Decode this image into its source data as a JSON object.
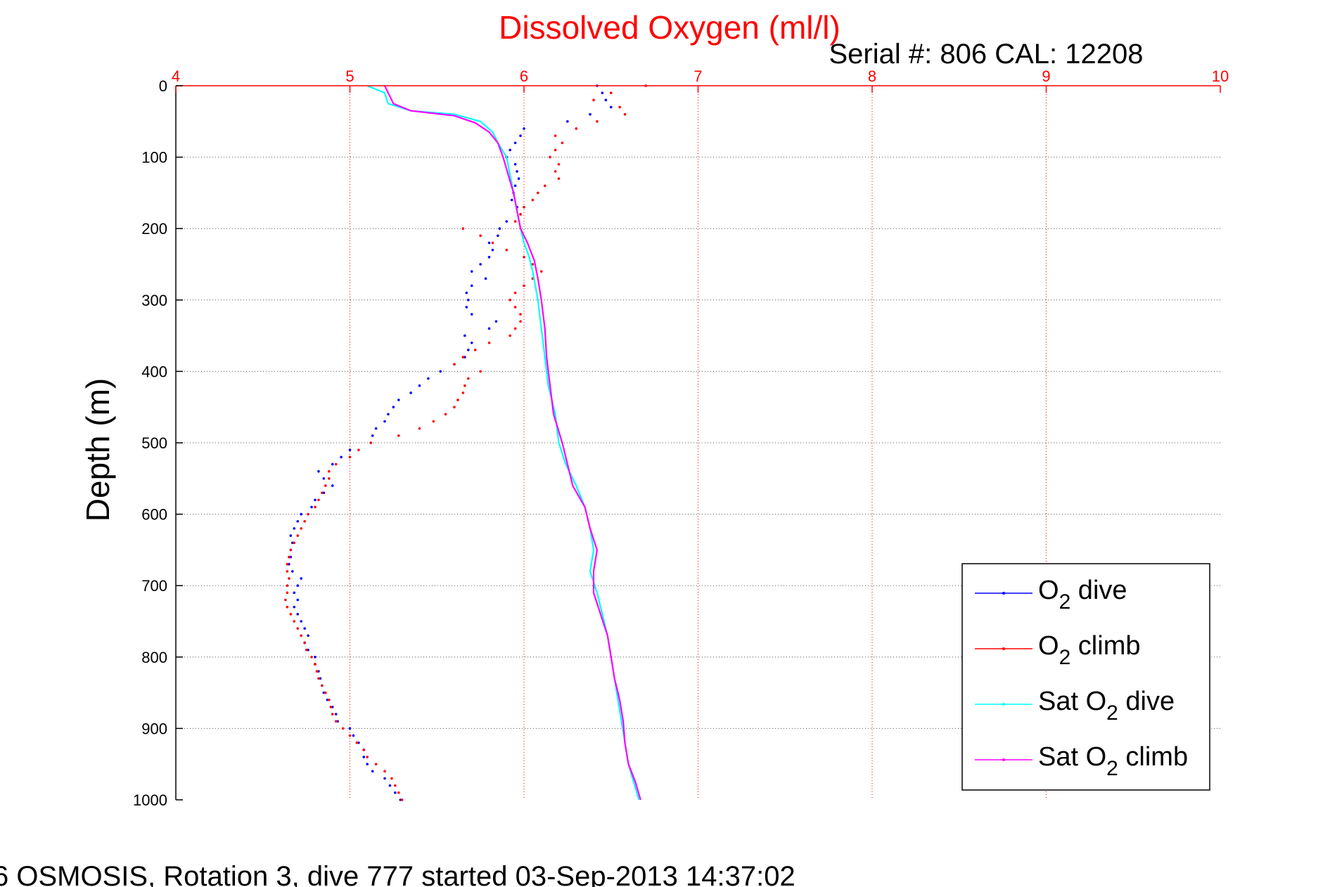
{
  "chart_data": {
    "type": "scatter",
    "title": "Dissolved Oxygen (ml/l)",
    "subtitle": "Serial #: 806  CAL: 12208",
    "xlabel": "",
    "ylabel": "Depth (m)",
    "footer": "6 OSMOSIS, Rotation 3, dive 777 started 03-Sep-2013 14:37:02",
    "xlim": [
      4,
      10
    ],
    "ylim": [
      0,
      1000
    ],
    "y_reversed": true,
    "x_ticks": [
      "4",
      "5",
      "6",
      "7",
      "8",
      "9",
      "10"
    ],
    "y_ticks": [
      "0",
      "100",
      "200",
      "300",
      "400",
      "500",
      "600",
      "700",
      "800",
      "900",
      "1000"
    ],
    "grid": true,
    "legend_position": "bottom-right",
    "colors": {
      "axis_top": "#ff0000",
      "grid": "#c8c8c8",
      "axis": "#000000",
      "title": "#ff0000"
    },
    "series": [
      {
        "name": "O2 dive",
        "legend_main": "O",
        "legend_sub": "2",
        "legend_rest": " dive",
        "color": "#0000ff",
        "style": "dots",
        "points": [
          [
            6.42,
            0
          ],
          [
            6.45,
            10
          ],
          [
            6.47,
            20
          ],
          [
            6.5,
            30
          ],
          [
            6.38,
            40
          ],
          [
            6.25,
            50
          ],
          [
            6.0,
            60
          ],
          [
            5.98,
            70
          ],
          [
            5.95,
            80
          ],
          [
            5.92,
            90
          ],
          [
            5.9,
            100
          ],
          [
            5.95,
            110
          ],
          [
            5.96,
            120
          ],
          [
            5.97,
            130
          ],
          [
            5.95,
            140
          ],
          [
            5.94,
            150
          ],
          [
            5.93,
            160
          ],
          [
            5.96,
            170
          ],
          [
            5.98,
            180
          ],
          [
            5.9,
            190
          ],
          [
            5.86,
            200
          ],
          [
            5.85,
            210
          ],
          [
            5.8,
            220
          ],
          [
            5.82,
            230
          ],
          [
            5.8,
            240
          ],
          [
            5.75,
            250
          ],
          [
            5.7,
            260
          ],
          [
            5.78,
            270
          ],
          [
            5.7,
            280
          ],
          [
            5.67,
            290
          ],
          [
            5.68,
            300
          ],
          [
            5.67,
            310
          ],
          [
            5.7,
            320
          ],
          [
            5.84,
            330
          ],
          [
            5.8,
            340
          ],
          [
            5.66,
            350
          ],
          [
            5.7,
            360
          ],
          [
            5.68,
            370
          ],
          [
            5.66,
            380
          ],
          [
            5.6,
            390
          ],
          [
            5.52,
            400
          ],
          [
            5.45,
            410
          ],
          [
            5.4,
            420
          ],
          [
            5.35,
            430
          ],
          [
            5.28,
            440
          ],
          [
            5.25,
            450
          ],
          [
            5.22,
            460
          ],
          [
            5.2,
            470
          ],
          [
            5.15,
            480
          ],
          [
            5.13,
            490
          ],
          [
            5.12,
            500
          ],
          [
            5.0,
            510
          ],
          [
            4.95,
            520
          ],
          [
            4.9,
            530
          ],
          [
            4.82,
            540
          ],
          [
            4.85,
            550
          ],
          [
            4.9,
            560
          ],
          [
            4.85,
            570
          ],
          [
            4.8,
            580
          ],
          [
            4.78,
            590
          ],
          [
            4.72,
            600
          ],
          [
            4.7,
            610
          ],
          [
            4.68,
            620
          ],
          [
            4.66,
            630
          ],
          [
            4.67,
            640
          ],
          [
            4.66,
            650
          ],
          [
            4.66,
            660
          ],
          [
            4.65,
            670
          ],
          [
            4.67,
            680
          ],
          [
            4.72,
            690
          ],
          [
            4.7,
            700
          ],
          [
            4.68,
            710
          ],
          [
            4.7,
            720
          ],
          [
            4.68,
            730
          ],
          [
            4.7,
            740
          ],
          [
            4.72,
            750
          ],
          [
            4.74,
            760
          ],
          [
            4.76,
            770
          ],
          [
            4.74,
            780
          ],
          [
            4.76,
            790
          ],
          [
            4.8,
            800
          ],
          [
            4.8,
            810
          ],
          [
            4.82,
            820
          ],
          [
            4.83,
            830
          ],
          [
            4.84,
            840
          ],
          [
            4.85,
            850
          ],
          [
            4.87,
            860
          ],
          [
            4.9,
            870
          ],
          [
            4.92,
            880
          ],
          [
            4.93,
            890
          ],
          [
            5.0,
            900
          ],
          [
            5.02,
            910
          ],
          [
            5.05,
            920
          ],
          [
            5.08,
            930
          ],
          [
            5.08,
            940
          ],
          [
            5.1,
            950
          ],
          [
            5.13,
            960
          ],
          [
            5.2,
            970
          ],
          [
            5.23,
            980
          ],
          [
            5.26,
            990
          ],
          [
            5.29,
            1000
          ]
        ]
      },
      {
        "name": "O2 climb",
        "legend_main": "O",
        "legend_sub": "2",
        "legend_rest": " climb",
        "color": "#ff0000",
        "style": "dots",
        "points": [
          [
            6.7,
            0
          ],
          [
            6.5,
            10
          ],
          [
            6.4,
            20
          ],
          [
            6.55,
            30
          ],
          [
            6.58,
            40
          ],
          [
            6.42,
            50
          ],
          [
            6.3,
            60
          ],
          [
            6.18,
            70
          ],
          [
            6.22,
            80
          ],
          [
            6.18,
            90
          ],
          [
            6.15,
            100
          ],
          [
            6.2,
            110
          ],
          [
            6.18,
            120
          ],
          [
            6.2,
            130
          ],
          [
            6.12,
            140
          ],
          [
            6.08,
            150
          ],
          [
            6.05,
            160
          ],
          [
            6.0,
            170
          ],
          [
            5.98,
            180
          ],
          [
            5.95,
            190
          ],
          [
            5.65,
            200
          ],
          [
            5.75,
            210
          ],
          [
            5.82,
            220
          ],
          [
            5.9,
            230
          ],
          [
            6.0,
            240
          ],
          [
            6.05,
            250
          ],
          [
            6.1,
            260
          ],
          [
            6.05,
            270
          ],
          [
            6.0,
            280
          ],
          [
            5.95,
            290
          ],
          [
            5.92,
            300
          ],
          [
            5.95,
            310
          ],
          [
            5.98,
            320
          ],
          [
            5.98,
            330
          ],
          [
            5.95,
            340
          ],
          [
            5.92,
            350
          ],
          [
            5.8,
            360
          ],
          [
            5.72,
            370
          ],
          [
            5.65,
            380
          ],
          [
            5.6,
            390
          ],
          [
            5.75,
            400
          ],
          [
            5.68,
            410
          ],
          [
            5.66,
            420
          ],
          [
            5.65,
            430
          ],
          [
            5.62,
            440
          ],
          [
            5.6,
            450
          ],
          [
            5.55,
            460
          ],
          [
            5.48,
            470
          ],
          [
            5.4,
            480
          ],
          [
            5.28,
            490
          ],
          [
            5.12,
            500
          ],
          [
            5.05,
            510
          ],
          [
            5.0,
            520
          ],
          [
            4.92,
            530
          ],
          [
            4.88,
            540
          ],
          [
            4.88,
            550
          ],
          [
            4.86,
            560
          ],
          [
            4.84,
            570
          ],
          [
            4.82,
            580
          ],
          [
            4.8,
            590
          ],
          [
            4.76,
            600
          ],
          [
            4.74,
            610
          ],
          [
            4.72,
            620
          ],
          [
            4.7,
            630
          ],
          [
            4.68,
            640
          ],
          [
            4.66,
            650
          ],
          [
            4.65,
            660
          ],
          [
            4.64,
            670
          ],
          [
            4.64,
            680
          ],
          [
            4.65,
            690
          ],
          [
            4.64,
            700
          ],
          [
            4.64,
            710
          ],
          [
            4.63,
            720
          ],
          [
            4.64,
            730
          ],
          [
            4.66,
            740
          ],
          [
            4.68,
            750
          ],
          [
            4.7,
            760
          ],
          [
            4.72,
            770
          ],
          [
            4.74,
            780
          ],
          [
            4.75,
            790
          ],
          [
            4.78,
            800
          ],
          [
            4.8,
            810
          ],
          [
            4.81,
            820
          ],
          [
            4.82,
            830
          ],
          [
            4.84,
            840
          ],
          [
            4.86,
            850
          ],
          [
            4.88,
            860
          ],
          [
            4.89,
            870
          ],
          [
            4.9,
            880
          ],
          [
            4.92,
            890
          ],
          [
            4.96,
            900
          ],
          [
            5.0,
            910
          ],
          [
            5.04,
            920
          ],
          [
            5.08,
            930
          ],
          [
            5.1,
            940
          ],
          [
            5.15,
            950
          ],
          [
            5.2,
            960
          ],
          [
            5.24,
            970
          ],
          [
            5.26,
            980
          ],
          [
            5.28,
            990
          ],
          [
            5.3,
            1000
          ]
        ]
      },
      {
        "name": "Sat O2 dive",
        "legend_main": "Sat O",
        "legend_sub": "2",
        "legend_rest": " dive",
        "color": "#00ffff",
        "style": "line",
        "points": [
          [
            5.1,
            0
          ],
          [
            5.2,
            10
          ],
          [
            5.22,
            25
          ],
          [
            5.35,
            35
          ],
          [
            5.6,
            40
          ],
          [
            5.75,
            50
          ],
          [
            5.82,
            65
          ],
          [
            5.85,
            80
          ],
          [
            5.9,
            100
          ],
          [
            5.92,
            125
          ],
          [
            5.94,
            150
          ],
          [
            5.96,
            175
          ],
          [
            5.98,
            200
          ],
          [
            6.0,
            220
          ],
          [
            6.03,
            240
          ],
          [
            6.05,
            260
          ],
          [
            6.08,
            300
          ],
          [
            6.1,
            340
          ],
          [
            6.12,
            380
          ],
          [
            6.14,
            420
          ],
          [
            6.18,
            460
          ],
          [
            6.2,
            500
          ],
          [
            6.24,
            530
          ],
          [
            6.3,
            560
          ],
          [
            6.35,
            590
          ],
          [
            6.38,
            620
          ],
          [
            6.4,
            650
          ],
          [
            6.38,
            680
          ],
          [
            6.42,
            710
          ],
          [
            6.45,
            740
          ],
          [
            6.48,
            770
          ],
          [
            6.5,
            800
          ],
          [
            6.52,
            830
          ],
          [
            6.54,
            860
          ],
          [
            6.56,
            890
          ],
          [
            6.58,
            920
          ],
          [
            6.6,
            950
          ],
          [
            6.63,
            975
          ],
          [
            6.66,
            1000
          ]
        ]
      },
      {
        "name": "Sat O2 climb",
        "legend_main": "Sat O",
        "legend_sub": "2",
        "legend_rest": " climb",
        "color": "#ff00ff",
        "style": "line",
        "points": [
          [
            5.2,
            0
          ],
          [
            5.22,
            10
          ],
          [
            5.25,
            25
          ],
          [
            5.35,
            35
          ],
          [
            5.6,
            42
          ],
          [
            5.72,
            52
          ],
          [
            5.8,
            65
          ],
          [
            5.85,
            80
          ],
          [
            5.88,
            100
          ],
          [
            5.91,
            125
          ],
          [
            5.94,
            150
          ],
          [
            5.96,
            175
          ],
          [
            5.98,
            200
          ],
          [
            6.02,
            220
          ],
          [
            6.06,
            245
          ],
          [
            6.08,
            270
          ],
          [
            6.1,
            300
          ],
          [
            6.12,
            340
          ],
          [
            6.13,
            380
          ],
          [
            6.15,
            420
          ],
          [
            6.17,
            460
          ],
          [
            6.22,
            500
          ],
          [
            6.25,
            530
          ],
          [
            6.28,
            560
          ],
          [
            6.35,
            590
          ],
          [
            6.38,
            620
          ],
          [
            6.42,
            650
          ],
          [
            6.4,
            680
          ],
          [
            6.4,
            710
          ],
          [
            6.44,
            740
          ],
          [
            6.48,
            770
          ],
          [
            6.5,
            800
          ],
          [
            6.52,
            830
          ],
          [
            6.55,
            860
          ],
          [
            6.57,
            890
          ],
          [
            6.58,
            920
          ],
          [
            6.6,
            950
          ],
          [
            6.64,
            975
          ],
          [
            6.67,
            1000
          ]
        ]
      }
    ]
  }
}
